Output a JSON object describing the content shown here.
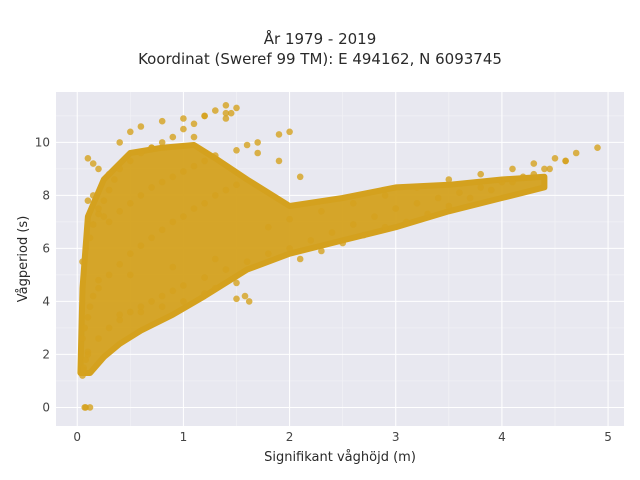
{
  "chart_data": {
    "type": "scatter",
    "title": "År 1979 - 2019",
    "subtitle": "Koordinat (Sweref 99 TM): E 494162, N 6093745",
    "xlabel": "Signifikant våghöjd (m)",
    "ylabel": "Vågperiod (s)",
    "xlim": [
      -0.2,
      5.15
    ],
    "ylim": [
      -0.7,
      11.9
    ],
    "xticks": [
      0,
      1,
      2,
      3,
      4,
      5
    ],
    "yticks": [
      0,
      2,
      4,
      6,
      8,
      10
    ],
    "grid": true,
    "marker_color": "#d4a11e",
    "background": "#e8e8f0",
    "series": [
      {
        "x": [
          0.05,
          0.06,
          0.08,
          0.1,
          0.05,
          0.07,
          0.1,
          0.12,
          0.15,
          0.2,
          0.05,
          0.08,
          0.12,
          0.15,
          0.2,
          0.25,
          0.3,
          0.35,
          0.4,
          0.5,
          0.6,
          0.7,
          0.8,
          0.9,
          1.0,
          1.1,
          1.2,
          1.3,
          1.4,
          1.5,
          0.1,
          0.2,
          0.3,
          0.4,
          0.5,
          0.6,
          0.7,
          0.8,
          0.9,
          1.0,
          1.2,
          1.4,
          1.6,
          1.8,
          2.0,
          0.2,
          0.3,
          0.4,
          0.5,
          0.6,
          0.7,
          0.8,
          0.9,
          1.0,
          1.1,
          1.2,
          1.3,
          1.4,
          1.5,
          0.3,
          0.4,
          0.5,
          0.6,
          0.7,
          0.8,
          0.9,
          1.0,
          1.1,
          1.2,
          1.3,
          1.5,
          1.7,
          1.9,
          2.0,
          2.2,
          2.4,
          2.6,
          2.8,
          3.0,
          3.2,
          3.4,
          3.6,
          3.8,
          4.0,
          4.2,
          4.4,
          4.6,
          4.9,
          1.8,
          2.0,
          2.3,
          2.6,
          2.9,
          3.2,
          3.5,
          3.8,
          4.1,
          4.3,
          4.5,
          4.7,
          0.4,
          0.6,
          0.8,
          1.0,
          1.2,
          1.3,
          1.5,
          0.4,
          0.5,
          0.6,
          0.8,
          1.0,
          1.2,
          1.4,
          0.1,
          0.15,
          0.2,
          0.1,
          0.15,
          0.2,
          0.25,
          0.08,
          0.12,
          0.5,
          0.9,
          1.3,
          1.5,
          1.58,
          1.62,
          2.1,
          2.3,
          2.5,
          2.7,
          2.9,
          3.1,
          3.3,
          3.5,
          3.7,
          3.9,
          4.1,
          4.3,
          4.45,
          4.6,
          0.3,
          0.7,
          1.1,
          1.6,
          1.7,
          1.9,
          2.1,
          1.4,
          1.45,
          0.06,
          0.07
        ],
        "y": [
          1.2,
          1.5,
          1.8,
          2.1,
          2.6,
          3.0,
          3.4,
          3.8,
          4.2,
          4.8,
          5.5,
          6.0,
          6.4,
          6.9,
          7.3,
          7.8,
          8.2,
          8.6,
          9.0,
          9.3,
          9.6,
          9.8,
          10.0,
          10.2,
          10.5,
          10.7,
          11.0,
          11.2,
          11.4,
          11.3,
          2.0,
          2.6,
          3.0,
          3.3,
          3.6,
          3.8,
          4.0,
          4.2,
          4.4,
          4.6,
          4.9,
          5.2,
          5.5,
          5.8,
          6.0,
          4.5,
          5.0,
          5.4,
          5.8,
          6.1,
          6.4,
          6.7,
          7.0,
          7.2,
          7.5,
          7.7,
          8.0,
          8.2,
          8.4,
          7.0,
          7.4,
          7.7,
          8.0,
          8.3,
          8.5,
          8.7,
          8.9,
          9.1,
          9.3,
          9.5,
          9.7,
          10.0,
          10.3,
          10.4,
          6.3,
          6.6,
          6.9,
          7.2,
          7.5,
          7.7,
          7.9,
          8.1,
          8.3,
          8.5,
          8.7,
          9.0,
          9.3,
          9.8,
          6.8,
          7.1,
          7.4,
          7.7,
          8.0,
          8.3,
          8.6,
          8.8,
          9.0,
          9.2,
          9.4,
          9.6,
          3.5,
          3.6,
          3.8,
          4.0,
          4.3,
          4.5,
          4.7,
          10.0,
          10.4,
          10.6,
          10.8,
          10.9,
          11.0,
          11.1,
          9.4,
          9.2,
          9.0,
          7.8,
          8.0,
          7.5,
          7.2,
          0.0,
          0.0,
          5.0,
          5.3,
          5.6,
          4.1,
          4.2,
          4.0,
          5.6,
          5.9,
          6.2,
          6.5,
          6.8,
          7.0,
          7.3,
          7.6,
          7.9,
          8.2,
          8.5,
          8.8,
          9.0,
          9.3,
          8.8,
          9.8,
          10.2,
          9.9,
          9.6,
          9.3,
          8.7,
          10.9,
          11.1,
          1.4,
          0.0
        ]
      }
    ]
  }
}
